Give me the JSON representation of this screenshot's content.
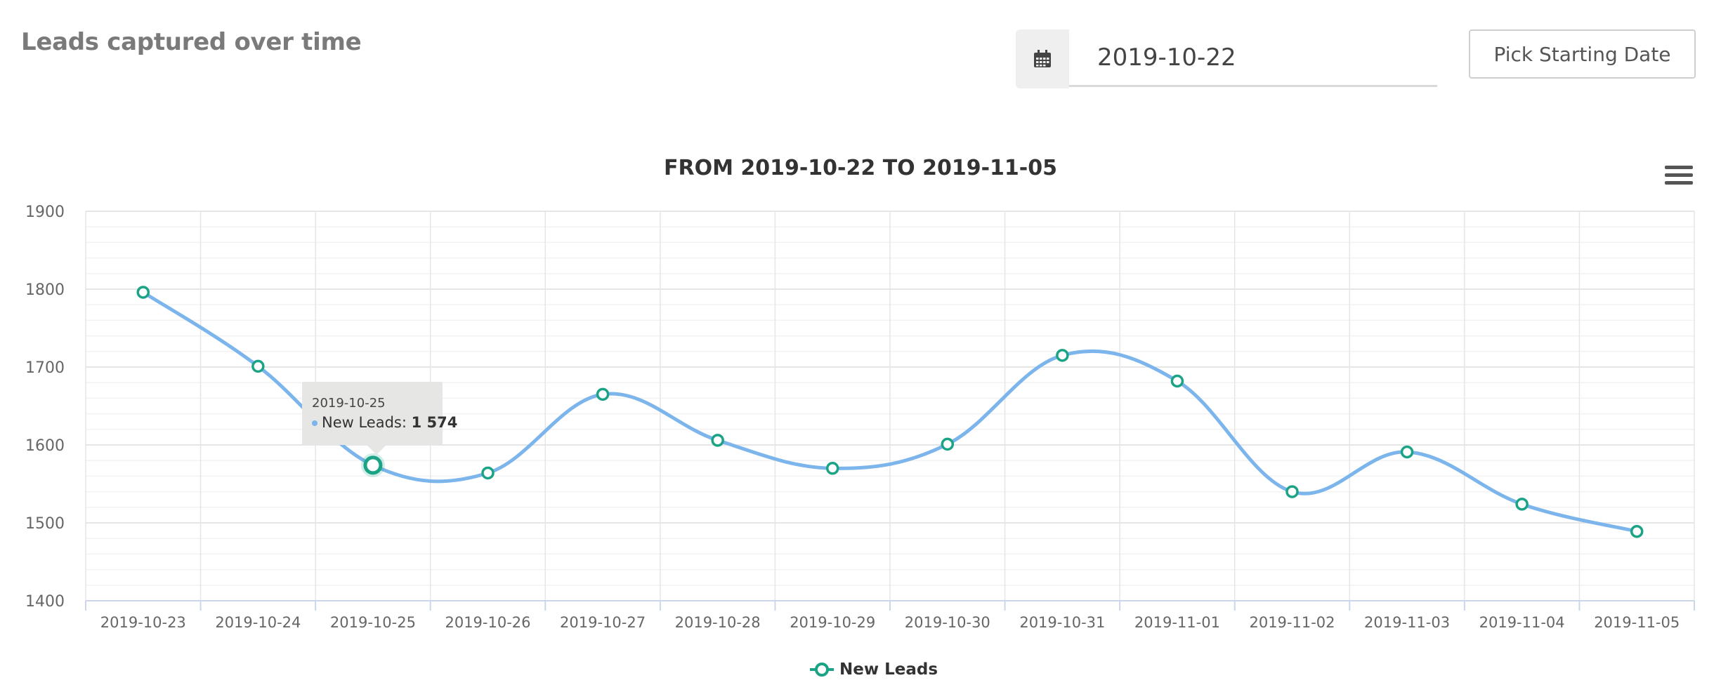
{
  "page": {
    "title": "Leads captured over time"
  },
  "date_picker": {
    "value": "2019-10-22",
    "icon": "calendar-icon"
  },
  "pick_button": {
    "label": "Pick Starting Date"
  },
  "chart_menu": {
    "icon": "hamburger-menu-icon"
  },
  "colors": {
    "line": "#7cb5ec",
    "marker": "#1aa385",
    "grid": "#e6e6e6"
  },
  "tooltip": {
    "date": "2019-10-25",
    "series_label": "New Leads: ",
    "value_text": "1 574"
  },
  "chart_data": {
    "type": "line",
    "title": "FROM 2019-10-22 TO 2019-11-05",
    "xlabel": "",
    "ylabel": "",
    "ylim": [
      1400,
      1900
    ],
    "yticks": [
      "1900",
      "1800",
      "1700",
      "1600",
      "1500",
      "1400"
    ],
    "grid": true,
    "legend_position": "bottom",
    "categories": [
      "2019-10-23",
      "2019-10-24",
      "2019-10-25",
      "2019-10-26",
      "2019-10-27",
      "2019-10-28",
      "2019-10-29",
      "2019-10-30",
      "2019-10-31",
      "2019-11-01",
      "2019-11-02",
      "2019-11-03",
      "2019-11-04",
      "2019-11-05"
    ],
    "series": [
      {
        "name": "New Leads",
        "values": [
          1796,
          1701,
          1574,
          1564,
          1665,
          1606,
          1570,
          1601,
          1715,
          1682,
          1540,
          1591,
          1524,
          1489
        ]
      }
    ],
    "highlighted_index": 2
  }
}
